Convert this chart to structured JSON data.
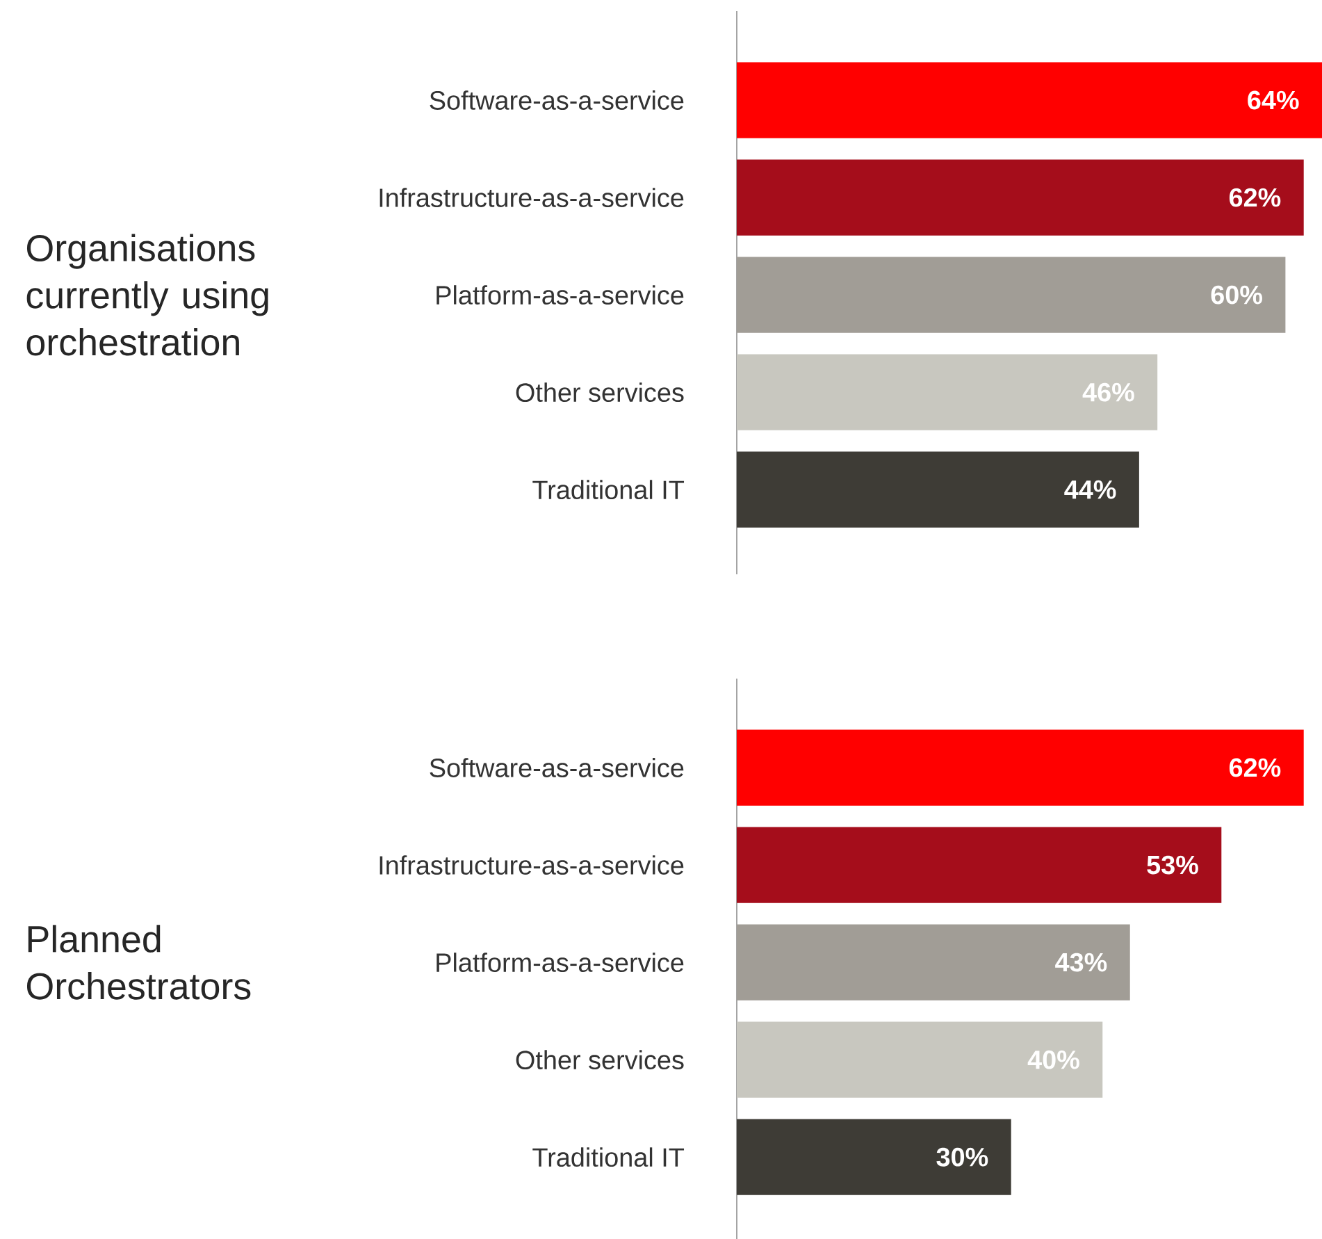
{
  "chart_data": [
    {
      "type": "bar",
      "orientation": "horizontal",
      "title": "Organisations currently using orchestration",
      "categories": [
        "Software-as-a-service",
        "Infrastructure-as-a-service",
        "Platform-as-a-service",
        "Other services",
        "Traditional IT"
      ],
      "values": [
        64,
        62,
        60,
        46,
        44
      ],
      "value_labels": [
        "64%",
        "62%",
        "60%",
        "46%",
        "44%"
      ],
      "colors": [
        "#ff0000",
        "#a50d1b",
        "#a19d96",
        "#c8c7bf",
        "#3e3c36"
      ]
    },
    {
      "type": "bar",
      "orientation": "horizontal",
      "title": "Planned Orchestrators",
      "categories": [
        "Software-as-a-service",
        "Infrastructure-as-a-service",
        "Platform-as-a-service",
        "Other services",
        "Traditional IT"
      ],
      "values": [
        62,
        53,
        43,
        40,
        30
      ],
      "value_labels": [
        "62%",
        "53%",
        "43%",
        "40%",
        "30%"
      ],
      "colors": [
        "#ff0000",
        "#a50d1b",
        "#a19d96",
        "#c8c7bf",
        "#3e3c36"
      ]
    }
  ]
}
